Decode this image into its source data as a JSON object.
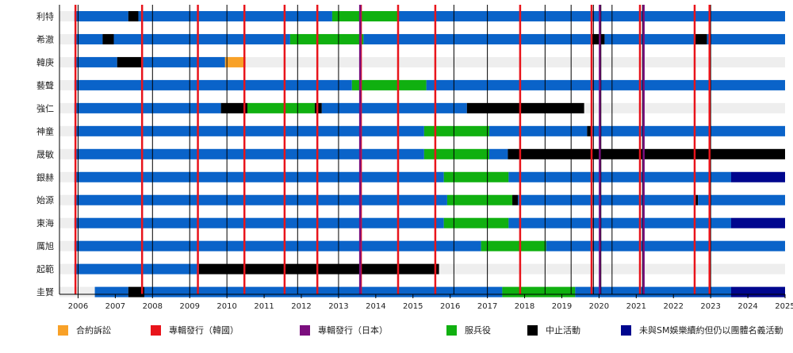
{
  "chart_data": {
    "type": "timeline",
    "x_range": [
      2005.5,
      2025.0
    ],
    "x_ticks": [
      {
        "value": 2006,
        "label": "2006"
      },
      {
        "value": 2007,
        "label": "2007"
      },
      {
        "value": 2008,
        "label": "2008"
      },
      {
        "value": 2009,
        "label": "2009"
      },
      {
        "value": 2010,
        "label": "2010"
      },
      {
        "value": 2011,
        "label": "2011"
      },
      {
        "value": 2012,
        "label": "2012"
      },
      {
        "value": 2013,
        "label": "2013"
      },
      {
        "value": 2014,
        "label": "2014"
      },
      {
        "value": 2015,
        "label": "2015"
      },
      {
        "value": 2016,
        "label": "2016"
      },
      {
        "value": 2017,
        "label": "2017"
      },
      {
        "value": 2018,
        "label": "2018"
      },
      {
        "value": 2019,
        "label": "2019"
      },
      {
        "value": 2020,
        "label": "2020"
      },
      {
        "value": 2021,
        "label": "2021"
      },
      {
        "value": 2022,
        "label": "2022"
      },
      {
        "value": 2023,
        "label": "2023"
      },
      {
        "value": 2024,
        "label": "2024"
      },
      {
        "value": 2025,
        "label": "2025"
      }
    ],
    "colors": {
      "active": "#0a63c9",
      "contract_dispute": "#f8a128",
      "release_korea": "#e8141b",
      "release_japan": "#7b0e7e",
      "military": "#10b010",
      "inactive": "#000000",
      "non_sm": "#00068e",
      "stripe": "#eeeeee",
      "release_line": "#000000"
    },
    "legend": [
      {
        "key": "contract_dispute",
        "label": "合約訴訟"
      },
      {
        "key": "release_korea",
        "label": "專輯發行（韓國）"
      },
      {
        "key": "release_japan",
        "label": "專輯發行（日本）"
      },
      {
        "key": "military",
        "label": "服兵役"
      },
      {
        "key": "inactive",
        "label": "中止活動"
      },
      {
        "key": "non_sm",
        "label": "未與SM娛樂續約但仍以團體名義活動"
      }
    ],
    "release_korea": [
      2005.93,
      2007.72,
      2009.22,
      2010.47,
      2011.55,
      2012.43,
      2013.6,
      2014.6,
      2015.6,
      2017.88,
      2019.8,
      2021.1,
      2022.57,
      2022.97
    ],
    "release_japan": [
      2013.58,
      2020.02,
      2021.2
    ],
    "releases_other": [
      2006.0,
      2008.0,
      2009.0,
      2010.0,
      2011.9,
      2013.0,
      2016.1,
      2017.0,
      2018.55,
      2019.25,
      2019.85,
      2020.05,
      2020.35,
      2021.17,
      2023.0
    ],
    "members": [
      {
        "name": "利特",
        "segments": [
          {
            "start": 2005.9,
            "end": 2007.35,
            "kind": "active"
          },
          {
            "start": 2007.35,
            "end": 2007.62,
            "kind": "inactive"
          },
          {
            "start": 2007.62,
            "end": 2012.83,
            "kind": "active"
          },
          {
            "start": 2012.83,
            "end": 2014.58,
            "kind": "military"
          },
          {
            "start": 2014.58,
            "end": 2025.0,
            "kind": "active"
          }
        ]
      },
      {
        "name": "希澈",
        "segments": [
          {
            "start": 2005.9,
            "end": 2006.66,
            "kind": "active"
          },
          {
            "start": 2006.66,
            "end": 2006.96,
            "kind": "inactive"
          },
          {
            "start": 2006.96,
            "end": 2011.7,
            "kind": "active"
          },
          {
            "start": 2011.7,
            "end": 2013.67,
            "kind": "military"
          },
          {
            "start": 2013.67,
            "end": 2019.8,
            "kind": "active"
          },
          {
            "start": 2019.8,
            "end": 2020.15,
            "kind": "inactive"
          },
          {
            "start": 2020.15,
            "end": 2022.55,
            "kind": "active"
          },
          {
            "start": 2022.55,
            "end": 2022.9,
            "kind": "inactive"
          },
          {
            "start": 2022.9,
            "end": 2025.0,
            "kind": "active"
          }
        ]
      },
      {
        "name": "韓庚",
        "segments": [
          {
            "start": 2005.9,
            "end": 2007.05,
            "kind": "active"
          },
          {
            "start": 2007.05,
            "end": 2007.75,
            "kind": "inactive"
          },
          {
            "start": 2007.75,
            "end": 2009.95,
            "kind": "active"
          },
          {
            "start": 2009.95,
            "end": 2010.5,
            "kind": "contract_dispute"
          }
        ]
      },
      {
        "name": "藝聲",
        "segments": [
          {
            "start": 2005.9,
            "end": 2013.36,
            "kind": "active"
          },
          {
            "start": 2013.36,
            "end": 2015.36,
            "kind": "military"
          },
          {
            "start": 2015.36,
            "end": 2025.0,
            "kind": "active"
          }
        ]
      },
      {
        "name": "強仁",
        "segments": [
          {
            "start": 2005.9,
            "end": 2009.84,
            "kind": "active"
          },
          {
            "start": 2009.84,
            "end": 2010.55,
            "kind": "inactive"
          },
          {
            "start": 2010.55,
            "end": 2012.36,
            "kind": "military"
          },
          {
            "start": 2012.36,
            "end": 2012.55,
            "kind": "inactive"
          },
          {
            "start": 2012.55,
            "end": 2016.45,
            "kind": "active"
          },
          {
            "start": 2016.45,
            "end": 2019.6,
            "kind": "inactive"
          }
        ]
      },
      {
        "name": "神童",
        "segments": [
          {
            "start": 2005.9,
            "end": 2015.3,
            "kind": "active"
          },
          {
            "start": 2015.3,
            "end": 2017.05,
            "kind": "military"
          },
          {
            "start": 2017.05,
            "end": 2019.68,
            "kind": "active"
          },
          {
            "start": 2019.68,
            "end": 2019.78,
            "kind": "inactive"
          },
          {
            "start": 2019.78,
            "end": 2025.0,
            "kind": "active"
          }
        ]
      },
      {
        "name": "晟敏",
        "segments": [
          {
            "start": 2005.9,
            "end": 2015.3,
            "kind": "active"
          },
          {
            "start": 2015.3,
            "end": 2017.05,
            "kind": "military"
          },
          {
            "start": 2017.05,
            "end": 2017.55,
            "kind": "active"
          },
          {
            "start": 2017.55,
            "end": 2025.0,
            "kind": "inactive"
          }
        ]
      },
      {
        "name": "銀赫",
        "segments": [
          {
            "start": 2005.9,
            "end": 2015.83,
            "kind": "active"
          },
          {
            "start": 2015.83,
            "end": 2017.57,
            "kind": "military"
          },
          {
            "start": 2017.57,
            "end": 2023.55,
            "kind": "active"
          },
          {
            "start": 2023.55,
            "end": 2025.0,
            "kind": "non_sm"
          }
        ]
      },
      {
        "name": "始源",
        "segments": [
          {
            "start": 2005.9,
            "end": 2015.92,
            "kind": "active"
          },
          {
            "start": 2015.92,
            "end": 2017.67,
            "kind": "military"
          },
          {
            "start": 2017.67,
            "end": 2017.82,
            "kind": "inactive"
          },
          {
            "start": 2017.82,
            "end": 2022.6,
            "kind": "active"
          },
          {
            "start": 2022.6,
            "end": 2022.66,
            "kind": "inactive"
          },
          {
            "start": 2022.66,
            "end": 2025.0,
            "kind": "active"
          }
        ]
      },
      {
        "name": "東海",
        "segments": [
          {
            "start": 2005.9,
            "end": 2015.83,
            "kind": "active"
          },
          {
            "start": 2015.83,
            "end": 2017.57,
            "kind": "military"
          },
          {
            "start": 2017.57,
            "end": 2023.55,
            "kind": "active"
          },
          {
            "start": 2023.55,
            "end": 2025.0,
            "kind": "non_sm"
          }
        ]
      },
      {
        "name": "厲旭",
        "segments": [
          {
            "start": 2005.9,
            "end": 2016.83,
            "kind": "active"
          },
          {
            "start": 2016.83,
            "end": 2018.58,
            "kind": "military"
          },
          {
            "start": 2018.58,
            "end": 2025.0,
            "kind": "active"
          }
        ]
      },
      {
        "name": "起範",
        "segments": [
          {
            "start": 2005.9,
            "end": 2009.25,
            "kind": "active"
          },
          {
            "start": 2009.25,
            "end": 2015.7,
            "kind": "inactive"
          }
        ]
      },
      {
        "name": "圭賢",
        "segments": [
          {
            "start": 2006.45,
            "end": 2007.35,
            "kind": "active"
          },
          {
            "start": 2007.35,
            "end": 2007.78,
            "kind": "inactive"
          },
          {
            "start": 2007.78,
            "end": 2017.4,
            "kind": "active"
          },
          {
            "start": 2017.4,
            "end": 2019.36,
            "kind": "military"
          },
          {
            "start": 2019.36,
            "end": 2023.55,
            "kind": "active"
          },
          {
            "start": 2023.55,
            "end": 2025.0,
            "kind": "non_sm"
          }
        ]
      }
    ]
  }
}
